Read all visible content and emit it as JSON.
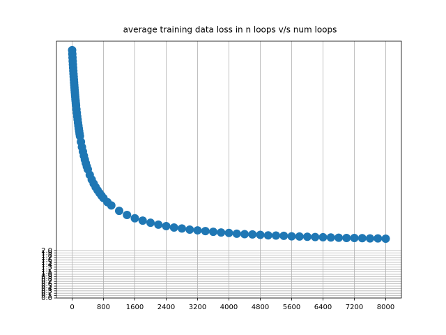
{
  "chart_data": {
    "type": "scatter",
    "title": "average training data loss in n loops v/s num loops",
    "x": [
      0,
      5,
      10,
      15,
      20,
      25,
      30,
      35,
      40,
      45,
      50,
      55,
      60,
      65,
      70,
      75,
      80,
      85,
      90,
      95,
      100,
      110,
      120,
      130,
      140,
      150,
      160,
      170,
      180,
      190,
      200,
      225,
      250,
      275,
      300,
      325,
      350,
      375,
      400,
      450,
      500,
      550,
      600,
      650,
      700,
      750,
      800,
      900,
      1000,
      1200,
      1400,
      1600,
      1800,
      2000,
      2200,
      2400,
      2600,
      2800,
      3000,
      3200,
      3400,
      3600,
      3800,
      4000,
      4200,
      4400,
      4600,
      4800,
      5000,
      5200,
      5400,
      5600,
      5800,
      6000,
      6200,
      6400,
      6600,
      6800,
      7000,
      7200,
      7400,
      7600,
      7800,
      8000
    ],
    "series": [
      {
        "color": "#1f77b4",
        "values": [
          10.44,
          10.28,
          10.13,
          9.98,
          9.84,
          9.7,
          9.57,
          9.44,
          9.32,
          9.2,
          9.08,
          8.97,
          8.87,
          8.76,
          8.66,
          8.56,
          8.47,
          8.37,
          8.29,
          8.2,
          8.11,
          7.95,
          7.8,
          7.65,
          7.52,
          7.38,
          7.26,
          7.14,
          7.03,
          6.92,
          6.82,
          6.58,
          6.36,
          6.17,
          5.99,
          5.83,
          5.68,
          5.54,
          5.42,
          5.19,
          4.99,
          4.82,
          4.67,
          4.54,
          4.42,
          4.31,
          4.21,
          4.04,
          3.9,
          3.67,
          3.5,
          3.36,
          3.26,
          3.17,
          3.09,
          3.03,
          2.97,
          2.93,
          2.88,
          2.85,
          2.82,
          2.79,
          2.76,
          2.74,
          2.71,
          2.69,
          2.68,
          2.66,
          2.64,
          2.63,
          2.62,
          2.6,
          2.59,
          2.58,
          2.57,
          2.56,
          2.55,
          2.54,
          2.53,
          2.53,
          2.52,
          2.51,
          2.51,
          2.5
        ]
      }
    ],
    "xlim": [
      -400,
      8400
    ],
    "ylim": [
      0,
      10.82
    ],
    "xticks": [
      0,
      800,
      1600,
      2400,
      3200,
      4000,
      4800,
      5600,
      6400,
      7200,
      8000
    ],
    "yticks": [
      {
        "value": 0,
        "label": "0.0"
      },
      0.1,
      0.2,
      0.3,
      0.4,
      0.5,
      0.6,
      0.7,
      0.8,
      0.9,
      {
        "value": 1,
        "label": "1.0"
      },
      1.1,
      1.2,
      1.3,
      1.4,
      1.5,
      1.6,
      1.7,
      1.8,
      1.9,
      {
        "value": 2,
        "label": "2.0"
      }
    ],
    "grid": true
  }
}
